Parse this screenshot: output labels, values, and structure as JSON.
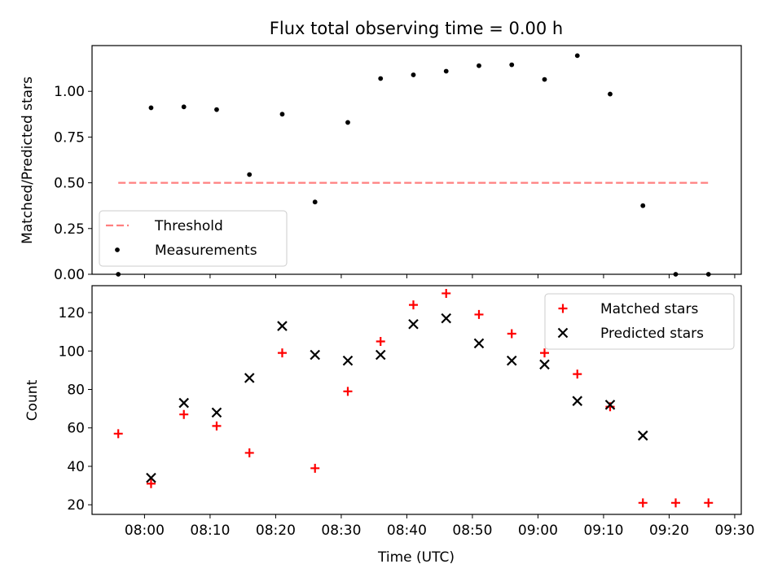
{
  "figure_title": "Flux total observing time = 0.00 h",
  "chart_data": [
    {
      "type": "scatter",
      "title": "Flux total observing time = 0.00 h",
      "xlabel": "",
      "ylabel": "Matched/Predicted stars",
      "ylim": [
        0.0,
        1.25
      ],
      "yticks": [
        0.0,
        0.25,
        0.5,
        0.75,
        1.0
      ],
      "ytick_labels": [
        "0.00",
        "0.25",
        "0.50",
        "0.75",
        "1.00"
      ],
      "xlim": [
        "07:52",
        "09:31"
      ],
      "xticks": [
        "08:00",
        "08:10",
        "08:20",
        "08:30",
        "08:40",
        "08:50",
        "09:00",
        "09:10",
        "09:20",
        "09:30"
      ],
      "x_tick_labels_shown": false,
      "grid": false,
      "legend_position": "lower-left",
      "legend": [
        "Threshold",
        "Measurements"
      ],
      "series": [
        {
          "name": "Threshold",
          "style": "dashed-line",
          "color": "#ff7f7f",
          "x": [
            "07:56",
            "09:26"
          ],
          "y": [
            0.5,
            0.5
          ]
        },
        {
          "name": "Measurements",
          "style": "dot",
          "color": "#000000",
          "x": [
            "07:56",
            "08:01",
            "08:06",
            "08:11",
            "08:16",
            "08:21",
            "08:26",
            "08:31",
            "08:36",
            "08:41",
            "08:46",
            "08:51",
            "08:56",
            "09:01",
            "09:06",
            "09:11",
            "09:16",
            "09:21",
            "09:26"
          ],
          "y": [
            0.0,
            0.91,
            0.915,
            0.9,
            0.545,
            0.875,
            0.395,
            0.83,
            1.07,
            1.09,
            1.11,
            1.14,
            1.145,
            1.065,
            1.195,
            0.985,
            0.375,
            0.0,
            0.0
          ]
        }
      ]
    },
    {
      "type": "scatter",
      "title": "",
      "xlabel": "Time (UTC)",
      "ylabel": "Count",
      "ylim": [
        15,
        134
      ],
      "yticks": [
        20,
        40,
        60,
        80,
        100,
        120
      ],
      "xlim": [
        "07:52",
        "09:31"
      ],
      "xticks": [
        "08:00",
        "08:10",
        "08:20",
        "08:30",
        "08:40",
        "08:50",
        "09:00",
        "09:10",
        "09:20",
        "09:30"
      ],
      "x_tick_labels_shown": true,
      "grid": false,
      "legend_position": "top-right",
      "legend": [
        "Matched stars",
        "Predicted stars"
      ],
      "series": [
        {
          "name": "Matched stars",
          "marker": "plus",
          "color": "#ff0000",
          "x": [
            "07:56",
            "08:01",
            "08:06",
            "08:11",
            "08:16",
            "08:21",
            "08:26",
            "08:31",
            "08:36",
            "08:41",
            "08:46",
            "08:51",
            "08:56",
            "09:01",
            "09:06",
            "09:11",
            "09:16",
            "09:21",
            "09:26"
          ],
          "y": [
            57,
            31,
            67,
            61,
            47,
            99,
            39,
            79,
            105,
            124,
            130,
            119,
            109,
            99,
            88,
            71,
            21,
            21,
            21
          ]
        },
        {
          "name": "Predicted stars",
          "marker": "x",
          "color": "#000000",
          "x": [
            "08:01",
            "08:06",
            "08:11",
            "08:16",
            "08:21",
            "08:26",
            "08:31",
            "08:36",
            "08:41",
            "08:46",
            "08:51",
            "08:56",
            "09:01",
            "09:06",
            "09:11",
            "09:16"
          ],
          "y": [
            34,
            73,
            68,
            86,
            113,
            98,
            95,
            98,
            114,
            117,
            104,
            95,
            93,
            74,
            72,
            56
          ]
        }
      ]
    }
  ]
}
